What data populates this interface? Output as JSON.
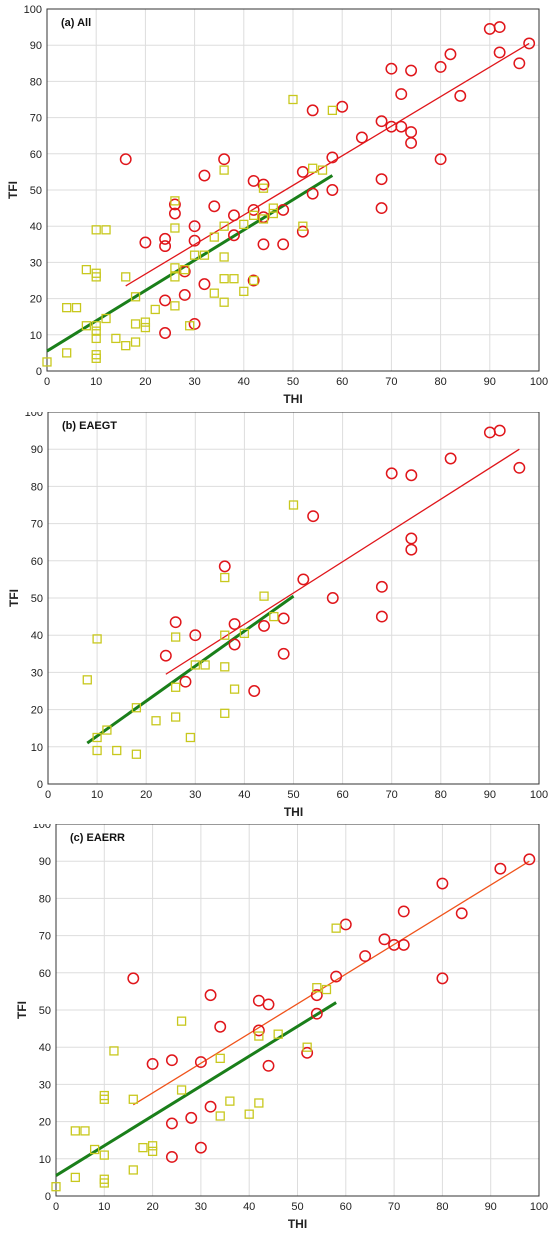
{
  "colors": {
    "red_marker": "#e0161b",
    "red_line": "#e0161b",
    "orange_line": "#f0531b",
    "yellow_marker": "#c8c81e",
    "green_line": "#1a7f1a",
    "grid": "#dddddd"
  },
  "chart_data": [
    {
      "type": "scatter",
      "title": "(a) All",
      "xlabel": "THI",
      "ylabel": "TFI",
      "xlim": [
        0,
        100
      ],
      "ylim": [
        0,
        100
      ],
      "xticks": [
        0,
        10,
        20,
        30,
        40,
        50,
        60,
        70,
        80,
        90,
        100
      ],
      "yticks": [
        0,
        10,
        20,
        30,
        40,
        50,
        60,
        70,
        80,
        90,
        100
      ],
      "grid": true,
      "series": [
        {
          "marker": "circle",
          "color": "#e0161b",
          "points": [
            [
              16,
              58.5
            ],
            [
              20,
              35.5
            ],
            [
              24,
              36.5
            ],
            [
              24,
              34.5
            ],
            [
              24,
              19.5
            ],
            [
              24,
              10.5
            ],
            [
              26,
              43.5
            ],
            [
              26,
              46
            ],
            [
              28,
              27.5
            ],
            [
              28,
              21
            ],
            [
              30,
              40
            ],
            [
              30,
              36
            ],
            [
              30,
              13
            ],
            [
              32,
              54
            ],
            [
              32,
              24
            ],
            [
              34,
              45.5
            ],
            [
              36,
              58.5
            ],
            [
              38,
              43
            ],
            [
              38,
              37.5
            ],
            [
              42,
              52.5
            ],
            [
              42,
              44.5
            ],
            [
              42,
              25
            ],
            [
              44,
              51.5
            ],
            [
              44,
              42.5
            ],
            [
              44,
              35
            ],
            [
              48,
              44.5
            ],
            [
              48,
              35
            ],
            [
              52,
              55
            ],
            [
              52,
              38.5
            ],
            [
              54,
              72
            ],
            [
              54,
              49
            ],
            [
              58,
              59
            ],
            [
              58,
              50
            ],
            [
              60,
              73
            ],
            [
              64,
              64.5
            ],
            [
              68,
              69
            ],
            [
              68,
              53
            ],
            [
              68,
              45
            ],
            [
              70,
              83.5
            ],
            [
              70,
              67.5
            ],
            [
              72,
              76.5
            ],
            [
              72,
              67.5
            ],
            [
              74,
              83
            ],
            [
              74,
              66
            ],
            [
              74,
              63
            ],
            [
              80,
              84
            ],
            [
              80,
              58.5
            ],
            [
              82,
              87.5
            ],
            [
              84,
              76
            ],
            [
              90,
              94.5
            ],
            [
              92,
              95
            ],
            [
              92,
              88
            ],
            [
              96,
              85
            ],
            [
              98,
              90.5
            ]
          ]
        },
        {
          "marker": "square",
          "color": "#c8c81e",
          "points": [
            [
              0,
              2.5
            ],
            [
              4,
              17.5
            ],
            [
              4,
              5
            ],
            [
              6,
              17.5
            ],
            [
              8,
              28
            ],
            [
              8,
              12.5
            ],
            [
              10,
              39
            ],
            [
              10,
              27
            ],
            [
              10,
              26
            ],
            [
              10,
              12.5
            ],
            [
              10,
              11
            ],
            [
              10,
              9
            ],
            [
              10,
              4.5
            ],
            [
              10,
              3.5
            ],
            [
              12,
              39
            ],
            [
              12,
              14.5
            ],
            [
              14,
              9
            ],
            [
              16,
              26
            ],
            [
              16,
              7
            ],
            [
              18,
              20.5
            ],
            [
              18,
              13
            ],
            [
              18,
              8
            ],
            [
              20,
              13.5
            ],
            [
              20,
              12
            ],
            [
              22,
              17
            ],
            [
              26,
              47
            ],
            [
              26,
              39.5
            ],
            [
              26,
              28.5
            ],
            [
              26,
              26
            ],
            [
              26,
              18
            ],
            [
              28,
              28
            ],
            [
              29,
              12.5
            ],
            [
              30,
              32
            ],
            [
              32,
              32
            ],
            [
              34,
              37
            ],
            [
              34,
              21.5
            ],
            [
              36,
              55.5
            ],
            [
              36,
              40
            ],
            [
              36,
              31.5
            ],
            [
              36,
              25.5
            ],
            [
              36,
              19
            ],
            [
              38,
              25.5
            ],
            [
              40,
              40.5
            ],
            [
              40,
              22
            ],
            [
              42,
              43
            ],
            [
              42,
              25
            ],
            [
              44,
              50.5
            ],
            [
              44,
              42
            ],
            [
              46,
              45
            ],
            [
              46,
              43.5
            ],
            [
              50,
              75
            ],
            [
              52,
              40
            ],
            [
              54,
              56
            ],
            [
              56,
              55.5
            ],
            [
              58,
              72
            ]
          ]
        }
      ],
      "fit_lines": [
        {
          "color": "#e0161b",
          "from": [
            16,
            23.5
          ],
          "to": [
            98,
            90.5
          ]
        },
        {
          "color": "#1a7f1a",
          "from": [
            0,
            5.5
          ],
          "to": [
            58,
            54
          ]
        }
      ]
    },
    {
      "type": "scatter",
      "title": "(b) EAEGT",
      "xlabel": "THI",
      "ylabel": "TFI",
      "xlim": [
        0,
        100
      ],
      "ylim": [
        0,
        100
      ],
      "xticks": [
        0,
        10,
        20,
        30,
        40,
        50,
        60,
        70,
        80,
        90,
        100
      ],
      "yticks": [
        0,
        10,
        20,
        30,
        40,
        50,
        60,
        70,
        80,
        90,
        100
      ],
      "grid": true,
      "series": [
        {
          "marker": "circle",
          "color": "#e0161b",
          "points": [
            [
              24,
              34.5
            ],
            [
              26,
              43.5
            ],
            [
              28,
              27.5
            ],
            [
              30,
              40
            ],
            [
              36,
              58.5
            ],
            [
              38,
              43
            ],
            [
              38,
              37.5
            ],
            [
              42,
              25
            ],
            [
              44,
              42.5
            ],
            [
              48,
              44.5
            ],
            [
              48,
              35
            ],
            [
              52,
              55
            ],
            [
              54,
              72
            ],
            [
              58,
              50
            ],
            [
              68,
              53
            ],
            [
              68,
              45
            ],
            [
              70,
              83.5
            ],
            [
              74,
              83
            ],
            [
              74,
              66
            ],
            [
              74,
              63
            ],
            [
              82,
              87.5
            ],
            [
              90,
              94.5
            ],
            [
              92,
              95
            ],
            [
              96,
              85
            ]
          ]
        },
        {
          "marker": "square",
          "color": "#c8c81e",
          "points": [
            [
              8,
              28
            ],
            [
              10,
              39
            ],
            [
              10,
              12.5
            ],
            [
              10,
              9
            ],
            [
              12,
              14.5
            ],
            [
              14,
              9
            ],
            [
              18,
              20.5
            ],
            [
              18,
              8
            ],
            [
              22,
              17
            ],
            [
              26,
              39.5
            ],
            [
              26,
              26
            ],
            [
              26,
              18
            ],
            [
              29,
              12.5
            ],
            [
              30,
              32
            ],
            [
              32,
              32
            ],
            [
              36,
              55.5
            ],
            [
              36,
              40
            ],
            [
              36,
              31.5
            ],
            [
              36,
              19
            ],
            [
              38,
              25.5
            ],
            [
              40,
              40.5
            ],
            [
              44,
              50.5
            ],
            [
              46,
              45
            ],
            [
              50,
              75
            ]
          ]
        }
      ],
      "fit_lines": [
        {
          "color": "#e0161b",
          "from": [
            24,
            29.5
          ],
          "to": [
            96,
            90
          ]
        },
        {
          "color": "#1a7f1a",
          "from": [
            8,
            11
          ],
          "to": [
            50,
            50.5
          ]
        }
      ]
    },
    {
      "type": "scatter",
      "title": "(c) EAERR",
      "xlabel": "THI",
      "ylabel": "TFI",
      "xlim": [
        0,
        100
      ],
      "ylim": [
        0,
        100
      ],
      "xticks": [
        0,
        10,
        20,
        30,
        40,
        50,
        60,
        70,
        80,
        90,
        100
      ],
      "yticks": [
        0,
        10,
        20,
        30,
        40,
        50,
        60,
        70,
        80,
        90,
        100
      ],
      "grid": true,
      "series": [
        {
          "marker": "circle",
          "color": "#e0161b",
          "points": [
            [
              16,
              58.5
            ],
            [
              20,
              35.5
            ],
            [
              24,
              36.5
            ],
            [
              24,
              19.5
            ],
            [
              24,
              10.5
            ],
            [
              28,
              21
            ],
            [
              30,
              36
            ],
            [
              30,
              13
            ],
            [
              32,
              54
            ],
            [
              32,
              24
            ],
            [
              34,
              45.5
            ],
            [
              42,
              52.5
            ],
            [
              42,
              44.5
            ],
            [
              44,
              51.5
            ],
            [
              44,
              35
            ],
            [
              52,
              38.5
            ],
            [
              54,
              49
            ],
            [
              54,
              54
            ],
            [
              58,
              59
            ],
            [
              60,
              73
            ],
            [
              64,
              64.5
            ],
            [
              68,
              69
            ],
            [
              70,
              67.5
            ],
            [
              72,
              76.5
            ],
            [
              72,
              67.5
            ],
            [
              80,
              84
            ],
            [
              80,
              58.5
            ],
            [
              84,
              76
            ],
            [
              92,
              88
            ],
            [
              98,
              90.5
            ]
          ]
        },
        {
          "marker": "square",
          "color": "#c8c81e",
          "points": [
            [
              0,
              2.5
            ],
            [
              4,
              17.5
            ],
            [
              4,
              5
            ],
            [
              6,
              17.5
            ],
            [
              8,
              12.5
            ],
            [
              10,
              27
            ],
            [
              10,
              26
            ],
            [
              10,
              11
            ],
            [
              10,
              4.5
            ],
            [
              10,
              3.5
            ],
            [
              12,
              39
            ],
            [
              16,
              26
            ],
            [
              16,
              7
            ],
            [
              18,
              13
            ],
            [
              20,
              13.5
            ],
            [
              20,
              12
            ],
            [
              26,
              47
            ],
            [
              26,
              28.5
            ],
            [
              34,
              37
            ],
            [
              34,
              21.5
            ],
            [
              36,
              25.5
            ],
            [
              40,
              22
            ],
            [
              42,
              43
            ],
            [
              42,
              25
            ],
            [
              46,
              43.5
            ],
            [
              52,
              40
            ],
            [
              54,
              56
            ],
            [
              56,
              55.5
            ],
            [
              58,
              72
            ]
          ]
        }
      ],
      "fit_lines": [
        {
          "color": "#f0531b",
          "from": [
            16,
            24.5
          ],
          "to": [
            98,
            90
          ]
        },
        {
          "color": "#1a7f1a",
          "from": [
            0,
            5.5
          ],
          "to": [
            58,
            52
          ]
        }
      ]
    }
  ]
}
